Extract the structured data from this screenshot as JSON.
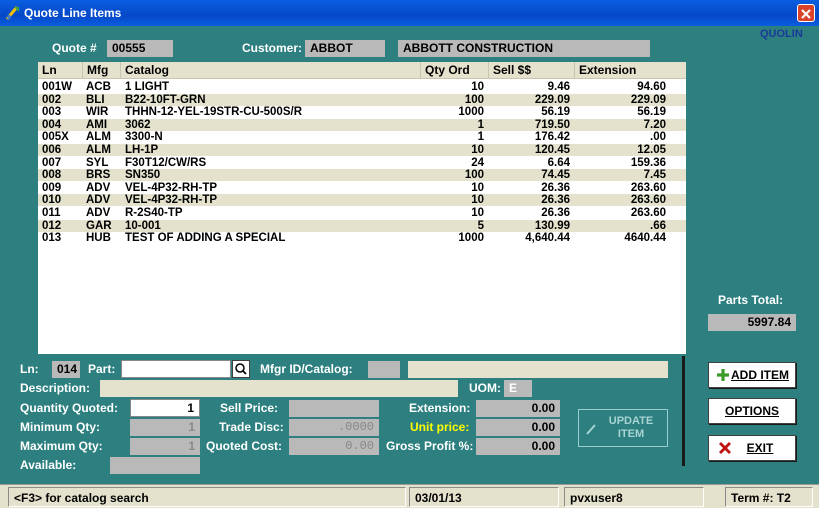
{
  "window": {
    "title": "Quote Line Items",
    "program_code": "QUOLIN"
  },
  "header": {
    "quote_label": "Quote #",
    "quote_value": "00555",
    "customer_label": "Customer:",
    "customer_code": "ABBOT",
    "customer_name": "ABBOTT CONSTRUCTION"
  },
  "grid": {
    "columns": [
      "Ln",
      "Mfg",
      "Catalog",
      "Qty Ord",
      "Sell $$",
      "Extension"
    ],
    "rows": [
      {
        "ln": "001W",
        "mfg": "ACB",
        "catalog": "1 LIGHT",
        "qty": "10",
        "sell": "9.46",
        "ext": "94.60"
      },
      {
        "ln": "002",
        "mfg": "BLI",
        "catalog": "B22-10FT-GRN",
        "qty": "100",
        "sell": "229.09",
        "ext": "229.09"
      },
      {
        "ln": "003",
        "mfg": "WIR",
        "catalog": "THHN-12-YEL-19STR-CU-500S/R",
        "qty": "1000",
        "sell": "56.19",
        "ext": "56.19"
      },
      {
        "ln": "004",
        "mfg": "AMI",
        "catalog": "3062",
        "qty": "1",
        "sell": "719.50",
        "ext": "7.20"
      },
      {
        "ln": "005X",
        "mfg": "ALM",
        "catalog": "3300-N",
        "qty": "1",
        "sell": "176.42",
        "ext": ".00"
      },
      {
        "ln": "006",
        "mfg": "ALM",
        "catalog": "LH-1P",
        "qty": "10",
        "sell": "120.45",
        "ext": "12.05"
      },
      {
        "ln": "007",
        "mfg": "SYL",
        "catalog": "F30T12/CW/RS",
        "qty": "24",
        "sell": "6.64",
        "ext": "159.36"
      },
      {
        "ln": "008",
        "mfg": "BRS",
        "catalog": "SN350",
        "qty": "100",
        "sell": "74.45",
        "ext": "7.45"
      },
      {
        "ln": "009",
        "mfg": "ADV",
        "catalog": "VEL-4P32-RH-TP",
        "qty": "10",
        "sell": "26.36",
        "ext": "263.60"
      },
      {
        "ln": "010",
        "mfg": "ADV",
        "catalog": "VEL-4P32-RH-TP",
        "qty": "10",
        "sell": "26.36",
        "ext": "263.60"
      },
      {
        "ln": "011",
        "mfg": "ADV",
        "catalog": "R-2S40-TP",
        "qty": "10",
        "sell": "26.36",
        "ext": "263.60"
      },
      {
        "ln": "012",
        "mfg": "GAR",
        "catalog": "10-001",
        "qty": "5",
        "sell": "130.99",
        "ext": ".66"
      },
      {
        "ln": "013",
        "mfg": "HUB",
        "catalog": "TEST OF ADDING A SPECIAL",
        "qty": "1000",
        "sell": "4,640.44",
        "ext": "4640.44"
      }
    ]
  },
  "totals": {
    "parts_total_label": "Parts Total:",
    "parts_total_value": "5997.84"
  },
  "entry": {
    "ln_label": "Ln:",
    "ln_value": "014",
    "part_label": "Part:",
    "part_value": "",
    "mfgr_label": "Mfgr ID/Catalog:",
    "mfgr_value": "",
    "catalog_value": "",
    "description_label": "Description:",
    "description_value": "",
    "uom_label": "UOM:",
    "uom_value": "E",
    "qty_quoted_label": "Quantity Quoted:",
    "qty_quoted_value": "1",
    "min_qty_label": "Minimum Qty:",
    "min_qty_value": "1",
    "max_qty_label": "Maximum Qty:",
    "max_qty_value": "1",
    "available_label": "Available:",
    "available_value": "",
    "sell_price_label": "Sell Price:",
    "sell_price_value": "",
    "trade_disc_label": "Trade Disc:",
    "trade_disc_value": ".0000",
    "quoted_cost_label": "Quoted Cost:",
    "quoted_cost_value": "0.00",
    "extension_label": "Extension:",
    "extension_value": "0.00",
    "unit_price_label": "Unit price:",
    "unit_price_value": "0.00",
    "gross_profit_label": "Gross Profit %:",
    "gross_profit_value": "0.00"
  },
  "buttons": {
    "update_line1": "UPDATE",
    "update_line2": "ITEM",
    "add_item": "ADD ITEM",
    "options": "OPTIONS",
    "exit": "EXIT"
  },
  "status": {
    "hint": "<F3> for catalog search",
    "date": "03/01/13",
    "user": "pvxuser8",
    "term": "Term #: T2"
  },
  "colors": {
    "window_bg": "#2d7f80",
    "row_alt": "#e4e2cd",
    "field_gray": "#b9b9b9",
    "unit_price_label": "#ffff00",
    "program_code": "#1a3a9a"
  }
}
